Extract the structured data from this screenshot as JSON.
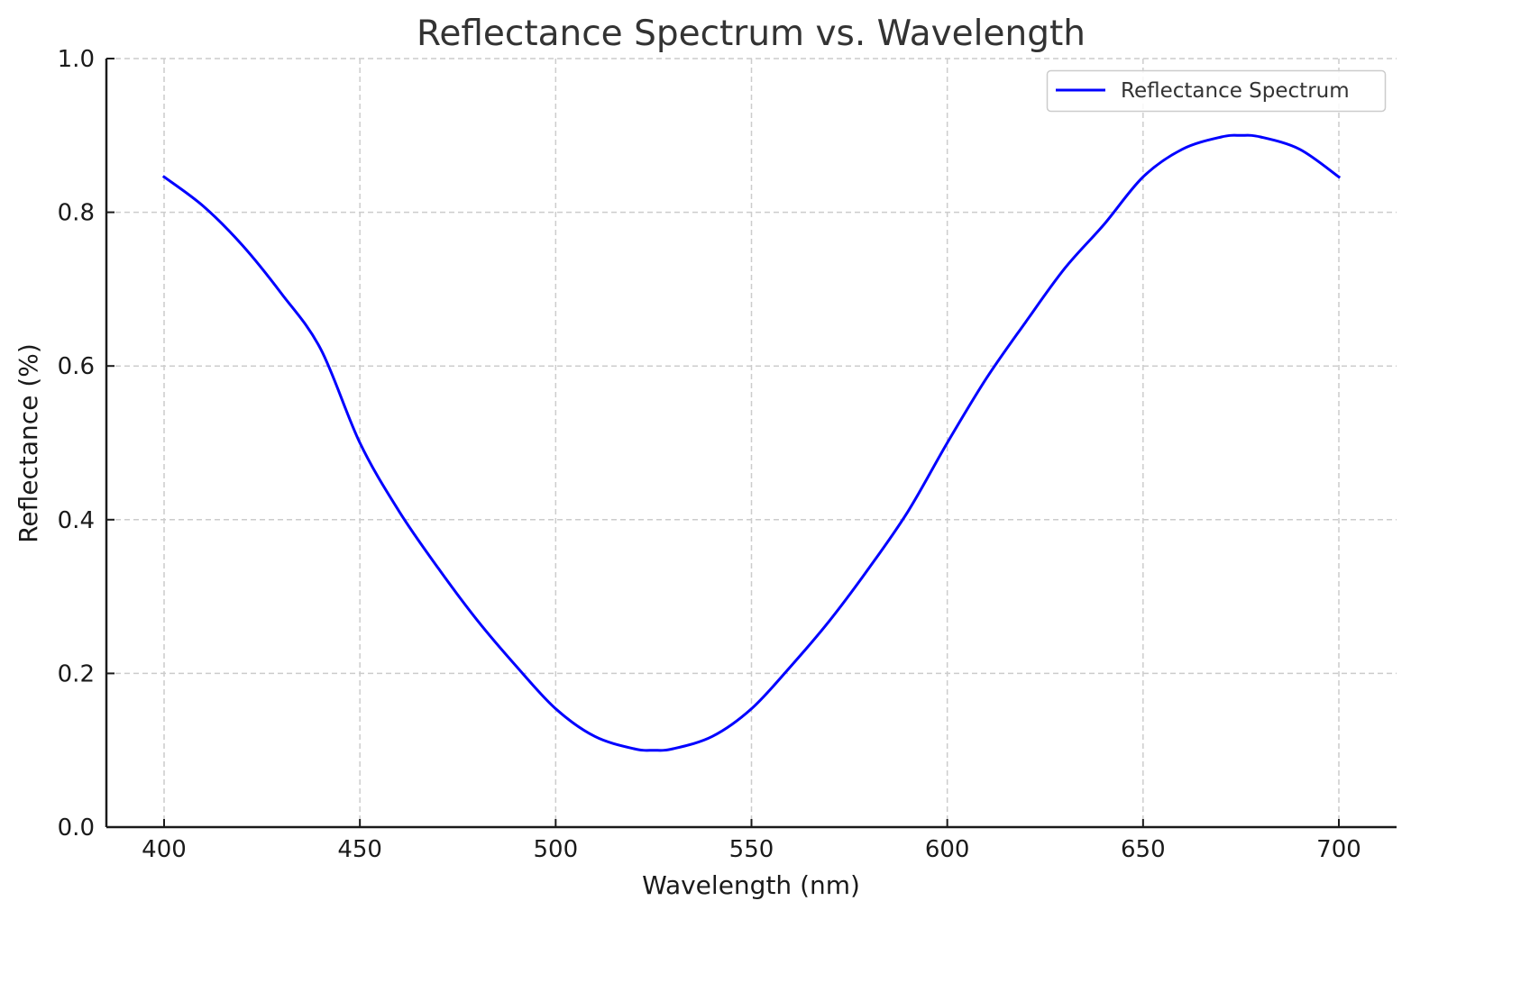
{
  "chart_data": {
    "type": "line",
    "title": "Reflectance Spectrum vs. Wavelength",
    "xlabel": "Wavelength (nm)",
    "ylabel": "Reflectance (%)",
    "xlim": [
      385,
      715
    ],
    "ylim": [
      0.0,
      1.0
    ],
    "x_ticks": [
      400,
      450,
      500,
      550,
      600,
      650,
      700
    ],
    "x_tick_labels": [
      "400",
      "450",
      "500",
      "550",
      "600",
      "650",
      "700"
    ],
    "y_ticks": [
      0.0,
      0.2,
      0.4,
      0.6,
      0.8,
      1.0
    ],
    "y_tick_labels": [
      "0.0",
      "0.2",
      "0.4",
      "0.6",
      "0.8",
      "1.0"
    ],
    "grid": true,
    "legend_position": "top-right",
    "series": [
      {
        "name": "Reflectance Spectrum",
        "color": "#0000ff",
        "x": [
          400,
          410,
          420,
          430,
          440,
          450,
          460,
          470,
          480,
          490,
          500,
          510,
          520,
          525,
          530,
          540,
          550,
          560,
          570,
          580,
          590,
          600,
          610,
          620,
          630,
          640,
          650,
          660,
          670,
          675,
          680,
          690,
          700
        ],
        "y": [
          0.846,
          0.808,
          0.757,
          0.694,
          0.622,
          0.5,
          0.411,
          0.337,
          0.269,
          0.209,
          0.154,
          0.118,
          0.102,
          0.1,
          0.102,
          0.118,
          0.154,
          0.209,
          0.269,
          0.337,
          0.411,
          0.5,
          0.584,
          0.657,
          0.727,
          0.784,
          0.846,
          0.882,
          0.898,
          0.9,
          0.898,
          0.882,
          0.846
        ]
      }
    ]
  }
}
